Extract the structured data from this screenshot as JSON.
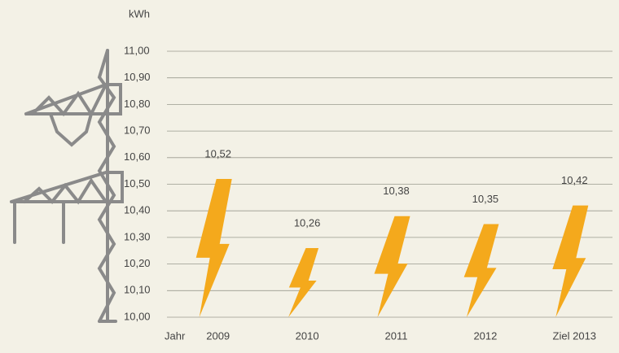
{
  "chart_data": {
    "type": "bolt-bar",
    "y_label": "kWh",
    "x_label": "Jahr",
    "categories": [
      "2009",
      "2010",
      "2011",
      "2012",
      "Ziel 2013"
    ],
    "values": [
      10.52,
      10.26,
      10.38,
      10.35,
      10.42
    ],
    "value_labels": [
      "10,52",
      "10,26",
      "10,38",
      "10,35",
      "10,42"
    ],
    "color": "#f4a91c",
    "ylim": [
      10.0,
      11.0
    ],
    "yticks": [
      {
        "value": 10.0,
        "label": "10,00"
      },
      {
        "value": 10.1,
        "label": "10,10"
      },
      {
        "value": 10.2,
        "label": "10,20"
      },
      {
        "value": 10.3,
        "label": "10,30"
      },
      {
        "value": 10.4,
        "label": "10,40"
      },
      {
        "value": 10.5,
        "label": "10,50"
      },
      {
        "value": 10.6,
        "label": "10,60"
      },
      {
        "value": 10.7,
        "label": "10,70"
      },
      {
        "value": 10.8,
        "label": "10,80"
      },
      {
        "value": 10.9,
        "label": "10,90"
      },
      {
        "value": 11.0,
        "label": "11,00"
      }
    ],
    "grid": true
  }
}
